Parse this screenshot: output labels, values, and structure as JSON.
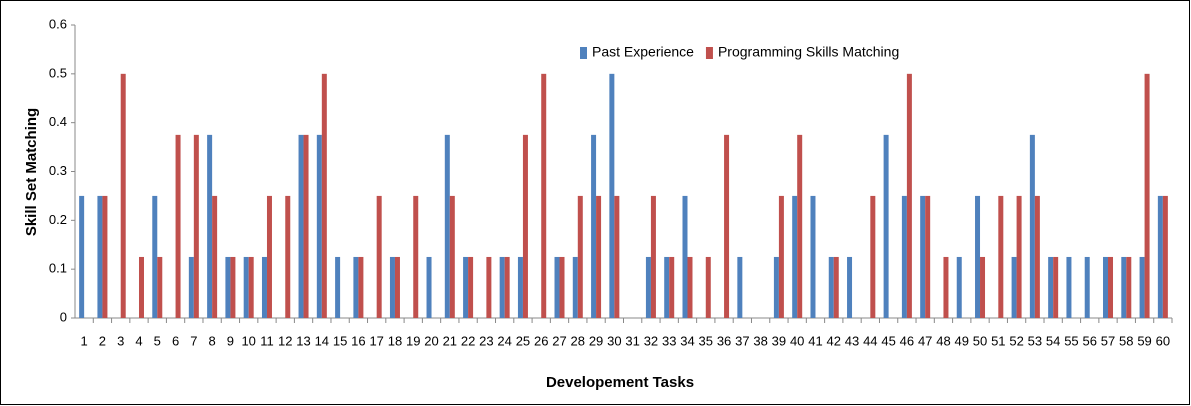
{
  "chart_data": {
    "type": "bar",
    "xlabel": "Developement Tasks",
    "ylabel": "Skill Set Matching",
    "categories": [
      "1",
      "2",
      "3",
      "4",
      "5",
      "6",
      "7",
      "8",
      "9",
      "10",
      "11",
      "12",
      "13",
      "14",
      "15",
      "16",
      "17",
      "18",
      "19",
      "20",
      "21",
      "22",
      "23",
      "24",
      "25",
      "26",
      "27",
      "28",
      "29",
      "30",
      "31",
      "32",
      "33",
      "34",
      "35",
      "36",
      "37",
      "38",
      "39",
      "40",
      "41",
      "42",
      "43",
      "44",
      "45",
      "46",
      "47",
      "48",
      "49",
      "50",
      "51",
      "52",
      "53",
      "54",
      "55",
      "56",
      "57",
      "58",
      "59",
      "60"
    ],
    "series": [
      {
        "name": "Past Experience",
        "color": "#4f81bd",
        "values": [
          0.25,
          0.25,
          0,
          0,
          0.25,
          0,
          0.125,
          0.375,
          0.125,
          0.125,
          0.125,
          0,
          0.375,
          0.375,
          0.125,
          0.125,
          0,
          0.125,
          0,
          0.125,
          0.375,
          0.125,
          0,
          0.125,
          0.125,
          0,
          0.125,
          0.125,
          0.375,
          0.5,
          0,
          0.125,
          0.125,
          0.25,
          0,
          0,
          0.125,
          0,
          0.125,
          0.25,
          0.25,
          0.125,
          0.125,
          0,
          0.375,
          0.25,
          0.25,
          0,
          0.125,
          0.25,
          0,
          0.125,
          0.375,
          0.125,
          0.125,
          0.125,
          0.125,
          0.125,
          0.125,
          0.25
        ]
      },
      {
        "name": "Programming Skills Matching",
        "color": "#c0504d",
        "values": [
          0,
          0.25,
          0.5,
          0.125,
          0.125,
          0.375,
          0.375,
          0.25,
          0.125,
          0.125,
          0.25,
          0.25,
          0.375,
          0.5,
          0,
          0.125,
          0.25,
          0.125,
          0.25,
          0,
          0.25,
          0.125,
          0.125,
          0.125,
          0.375,
          0.5,
          0.125,
          0.25,
          0.25,
          0.25,
          0,
          0.25,
          0.125,
          0.125,
          0.125,
          0.375,
          0,
          0,
          0.25,
          0.375,
          0,
          0.125,
          0,
          0.25,
          0,
          0.5,
          0.25,
          0.125,
          0,
          0.125,
          0.25,
          0.25,
          0.25,
          0.125,
          0,
          0,
          0.125,
          0.125,
          0.5,
          0.25
        ]
      }
    ],
    "ylim": [
      0,
      0.6
    ],
    "yticks": [
      0,
      0.1,
      0.2,
      0.3,
      0.4,
      0.5,
      0.6
    ],
    "grid": false,
    "legend": "top"
  }
}
